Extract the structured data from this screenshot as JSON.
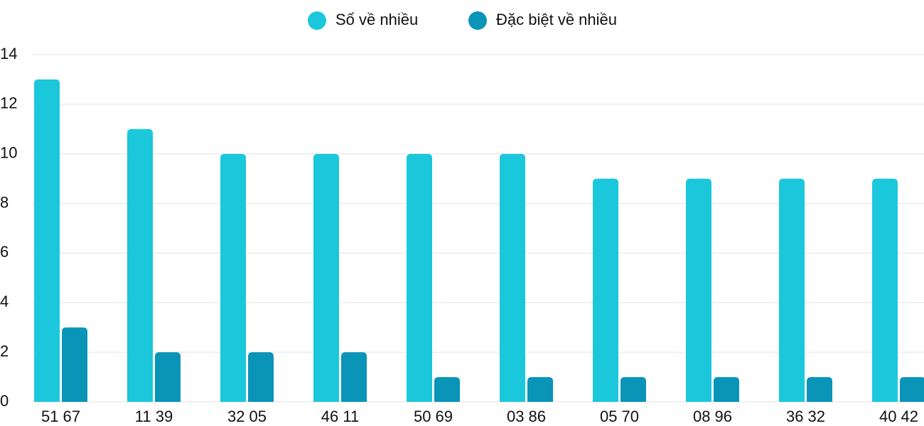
{
  "chart_data": {
    "type": "bar",
    "categories": [
      "51 67",
      "11 39",
      "32 05",
      "46 11",
      "50 69",
      "03 86",
      "05 70",
      "08 96",
      "36 32",
      "40 42"
    ],
    "series": [
      {
        "name": "Số về nhiều",
        "color": "#1bc8db",
        "values": [
          13,
          11,
          10,
          10,
          10,
          10,
          9,
          9,
          9,
          9
        ]
      },
      {
        "name": "Đặc biệt về nhiều",
        "color": "#0994b8",
        "values": [
          3,
          2,
          2,
          2,
          1,
          1,
          1,
          1,
          1,
          1
        ]
      }
    ],
    "ylim": [
      0,
      14
    ],
    "yticks": [
      0,
      2,
      4,
      6,
      8,
      10,
      12,
      14
    ],
    "grid": true,
    "legend": "top"
  }
}
